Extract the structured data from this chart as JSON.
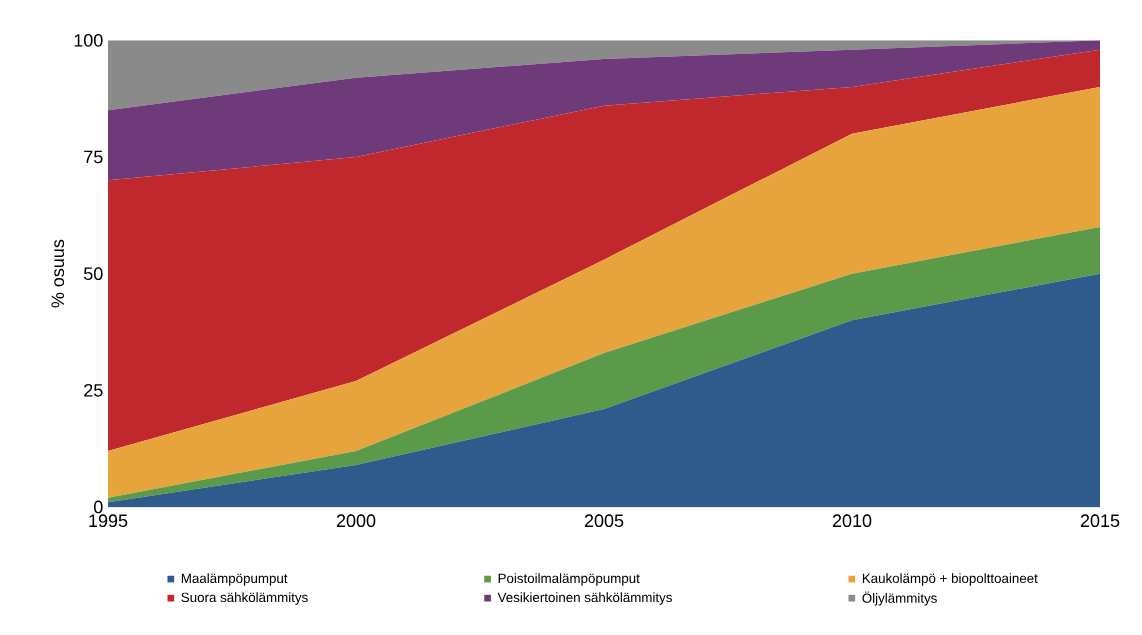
{
  "chart_data": {
    "type": "area",
    "stacked": true,
    "ylabel": "% osuus",
    "x": [
      1995,
      2000,
      2005,
      2010,
      2015
    ],
    "xlim": [
      1995,
      2015
    ],
    "xticks": [
      1995,
      2000,
      2005,
      2010,
      2015
    ],
    "ylim": [
      0,
      100
    ],
    "yticks": [
      0,
      25,
      50,
      75,
      100
    ],
    "grid": false,
    "legend": "bottom",
    "series": [
      {
        "name": "Maalämpöpumput",
        "color": "#2e5a8c",
        "values": [
          1,
          9,
          21,
          40,
          50
        ]
      },
      {
        "name": "Poistoilmalämpöpumput",
        "color": "#5a9a48",
        "values": [
          1,
          3,
          12,
          10,
          10
        ]
      },
      {
        "name": "Kaukolämpö + biopolttoaineet",
        "color": "#e8a43c",
        "values": [
          10,
          15,
          20,
          30,
          30
        ]
      },
      {
        "name": "Suora sähkölämmitys",
        "color": "#c0282e",
        "values": [
          58,
          48,
          33,
          10,
          8
        ]
      },
      {
        "name": "Vesikiertoinen sähkölämmitys",
        "color": "#6e3a7a",
        "values": [
          15,
          17,
          10,
          8,
          2
        ]
      },
      {
        "name": "Öljylämmitys",
        "color": "#8a8a8a",
        "values": [
          15,
          8,
          4,
          2,
          0
        ]
      }
    ]
  }
}
